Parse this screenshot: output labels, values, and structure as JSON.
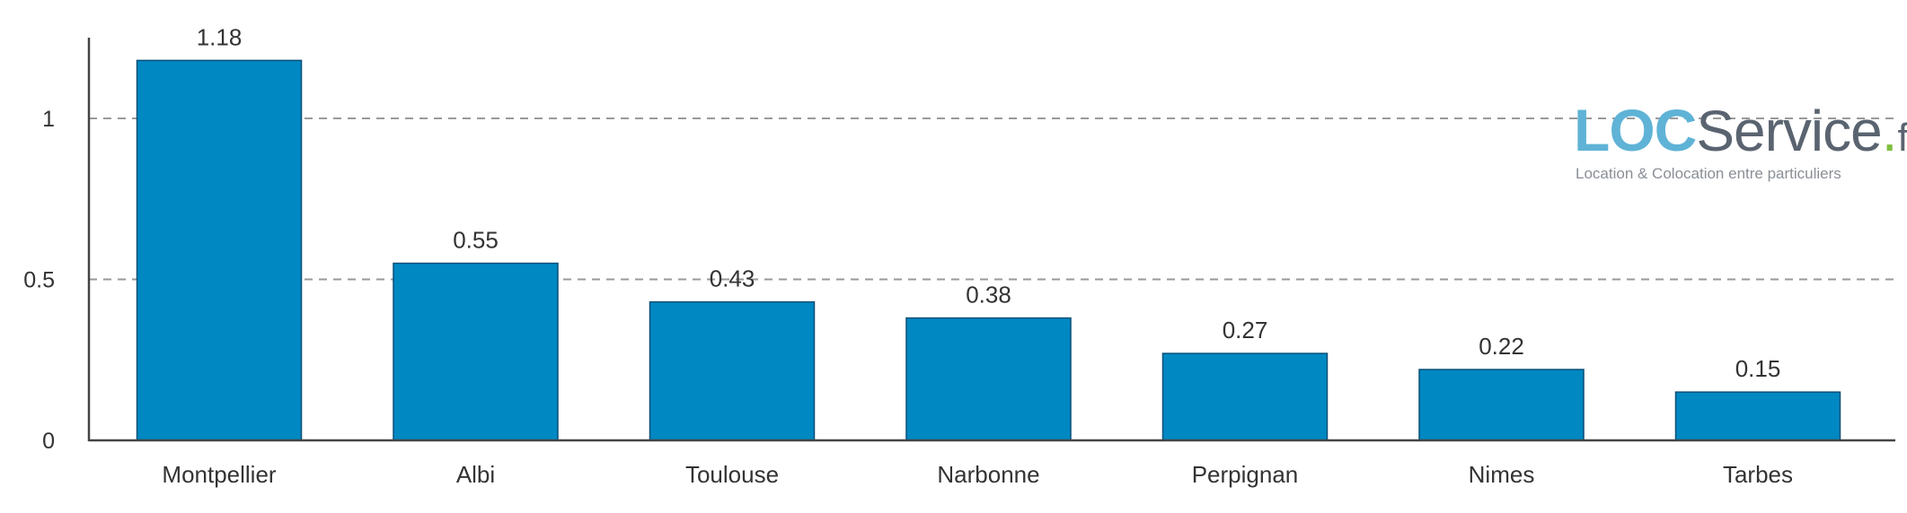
{
  "chart_data": {
    "type": "bar",
    "categories": [
      "Montpellier",
      "Albi",
      "Toulouse",
      "Narbonne",
      "Perpignan",
      "Nimes",
      "Tarbes"
    ],
    "values": [
      1.18,
      0.55,
      0.43,
      0.38,
      0.27,
      0.22,
      0.15
    ],
    "data_labels": [
      "1.18",
      "0.55",
      "0.43",
      "0.38",
      "0.27",
      "0.22",
      "0.15"
    ],
    "y_ticks": [
      0,
      0.5,
      1
    ],
    "y_tick_labels": [
      "0",
      "0.5",
      "1"
    ],
    "ylim": [
      0,
      1.25
    ],
    "grid": true,
    "bar_color": "#0088c2"
  },
  "logo": {
    "part1": "LOC",
    "part2": "Service",
    "dot": ".",
    "tld": "fr",
    "tagline": "Location & Colocation entre particuliers"
  }
}
